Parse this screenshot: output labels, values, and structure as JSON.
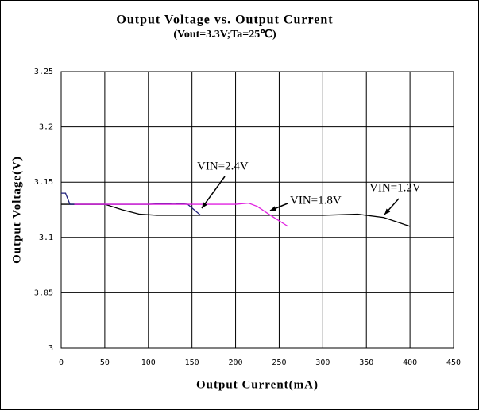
{
  "chart_data": {
    "type": "line",
    "title": "Output Voltage vs. Output Current",
    "subtitle": "(Vout=3.3V;Ta=25℃)",
    "x_label": "Output Current(mA)",
    "y_label": "Output Voltage(V)",
    "xlim": [
      0,
      450
    ],
    "xticks": [
      0,
      50,
      100,
      150,
      200,
      250,
      300,
      350,
      400,
      450
    ],
    "ylim": [
      3,
      3.25
    ],
    "yticks": [
      3,
      3.05,
      3.1,
      3.15,
      3.2,
      3.25
    ],
    "grid": true,
    "series": [
      {
        "name": "VIN=2.4V",
        "color": "#000000",
        "x": [
          0,
          20,
          50,
          70,
          90,
          110,
          150,
          200,
          250,
          300,
          340,
          370,
          400
        ],
        "values": [
          3.13,
          3.13,
          3.13,
          3.125,
          3.121,
          3.12,
          3.12,
          3.12,
          3.12,
          3.12,
          3.121,
          3.118,
          3.11
        ]
      },
      {
        "name": "VIN=1.2V",
        "color": "#1f1f7a",
        "x": [
          0,
          5,
          10,
          15,
          50,
          100,
          130,
          145,
          160
        ],
        "values": [
          3.14,
          3.14,
          3.13,
          3.13,
          3.13,
          3.13,
          3.131,
          3.13,
          3.12
        ]
      },
      {
        "name": "VIN=1.8V",
        "color": "#e020e0",
        "x": [
          15,
          50,
          100,
          150,
          200,
          215,
          225,
          240,
          260
        ],
        "values": [
          3.13,
          3.13,
          3.13,
          3.13,
          3.13,
          3.131,
          3.128,
          3.12,
          3.11
        ]
      }
    ]
  }
}
